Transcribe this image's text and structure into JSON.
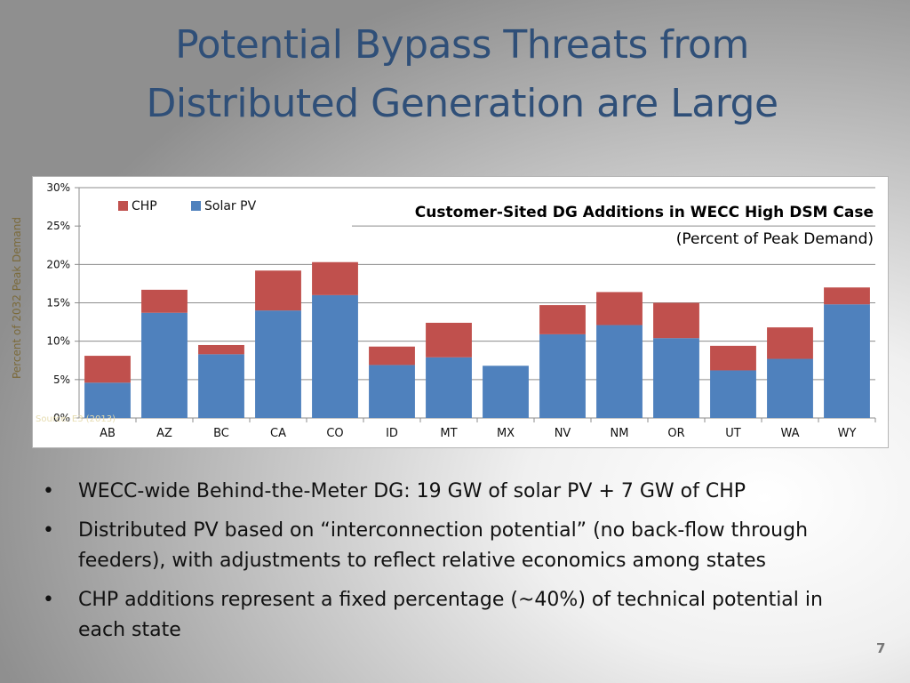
{
  "slide": {
    "title_line1": "Potential Bypass Threats from",
    "title_line2": "Distributed Generation are Large",
    "page_number": "7",
    "source_note": "Source: E3 (2013)",
    "bullets": [
      "WECC-wide Behind-the-Meter DG: 19 GW of solar PV + 7 GW of CHP",
      "Distributed PV based on “interconnection potential” (no back-flow through feeders), with adjustments to reflect relative economics among states",
      "CHP additions represent a fixed percentage (~40%) of technical potential in each state"
    ]
  },
  "chart_data": {
    "type": "bar",
    "stacked": true,
    "title": "Customer-Sited DG Additions in WECC High DSM Case",
    "subtitle": "(Percent of Peak Demand)",
    "ylabel": "Percent of 2032 Peak Demand",
    "xlabel": "",
    "ylim": [
      0,
      30
    ],
    "yticks": [
      "0%",
      "5%",
      "10%",
      "15%",
      "20%",
      "25%",
      "30%"
    ],
    "grid": true,
    "legend_position": "top-left",
    "categories": [
      "AB",
      "AZ",
      "BC",
      "CA",
      "CO",
      "ID",
      "MT",
      "MX",
      "NV",
      "NM",
      "OR",
      "UT",
      "WA",
      "WY"
    ],
    "series": [
      {
        "name": "Solar PV",
        "color": "#4f81bd",
        "values": [
          4.6,
          13.7,
          8.3,
          14.0,
          16.0,
          6.9,
          7.9,
          6.8,
          10.9,
          12.1,
          10.4,
          6.2,
          7.7,
          14.8
        ]
      },
      {
        "name": "CHP",
        "color": "#c0504d",
        "values": [
          3.5,
          3.0,
          1.2,
          5.2,
          4.3,
          2.4,
          4.5,
          0.0,
          3.8,
          4.3,
          4.6,
          3.2,
          4.1,
          2.2
        ]
      }
    ],
    "legend_order": [
      "CHP",
      "Solar PV"
    ]
  }
}
